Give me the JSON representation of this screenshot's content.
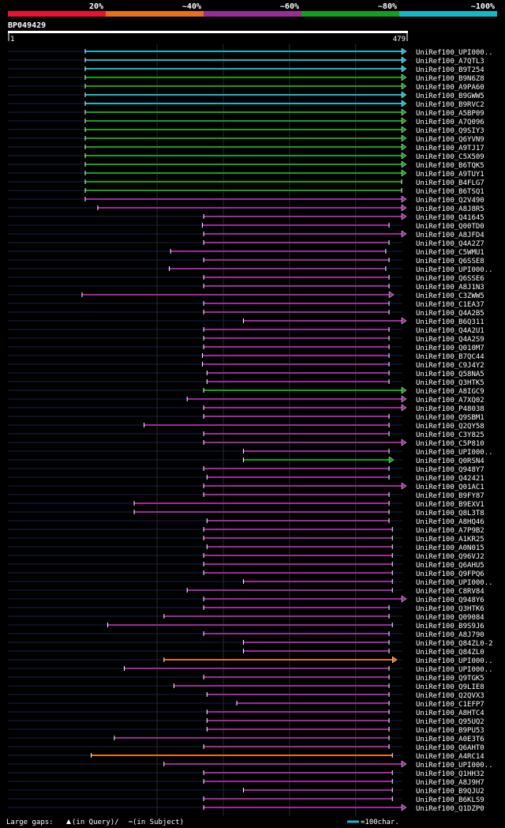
{
  "chart_data": {
    "type": "alignment-overview",
    "title": "BP049429",
    "query_length": 479,
    "axis_start_label": "1",
    "axis_end_label": "479",
    "identity_legend": [
      {
        "label": "20%",
        "color": "#e8142e"
      },
      {
        "label": "~40%",
        "color": "#e8701a"
      },
      {
        "label": "~60%",
        "color": "#9a2c98"
      },
      {
        "label": "~80%",
        "color": "#14a01c"
      },
      {
        "label": "~100%",
        "color": "#14b8c8"
      }
    ],
    "footer": {
      "gaps_label": "Large gaps:",
      "gaps_query": "(in Query)/",
      "gaps_subject": " (in Subject)",
      "scale_label": "=100char."
    },
    "hits": [
      {
        "name": "UniRef100_UPI000..",
        "s": 1,
        "e": 479,
        "c": 4,
        "a": 1
      },
      {
        "name": "UniRef100_A7QTL3",
        "s": 1,
        "e": 479,
        "c": 4,
        "a": 1
      },
      {
        "name": "UniRef100_B9T254",
        "s": 1,
        "e": 479,
        "c": 4,
        "a": 1
      },
      {
        "name": "UniRef100_B9N6Z8",
        "s": 1,
        "e": 479,
        "c": 3,
        "a": 1
      },
      {
        "name": "UniRef100_A9PA60",
        "s": 1,
        "e": 479,
        "c": 3,
        "a": 1
      },
      {
        "name": "UniRef100_B9GWW5",
        "s": 1,
        "e": 479,
        "c": 4,
        "a": 1
      },
      {
        "name": "UniRef100_B9RVC2",
        "s": 1,
        "e": 479,
        "c": 4,
        "a": 1
      },
      {
        "name": "UniRef100_A5BP09",
        "s": 1,
        "e": 479,
        "c": 3,
        "a": 1
      },
      {
        "name": "UniRef100_A7Q096",
        "s": 1,
        "e": 479,
        "c": 3,
        "a": 1
      },
      {
        "name": "UniRef100_Q9SIY3",
        "s": 1,
        "e": 479,
        "c": 3,
        "a": 1
      },
      {
        "name": "UniRef100_Q6YVN9",
        "s": 1,
        "e": 479,
        "c": 3,
        "a": 1
      },
      {
        "name": "UniRef100_A9TJ17",
        "s": 1,
        "e": 479,
        "c": 3,
        "a": 1
      },
      {
        "name": "UniRef100_C5X509",
        "s": 1,
        "e": 479,
        "c": 3,
        "a": 1
      },
      {
        "name": "UniRef100_B6TQK5",
        "s": 1,
        "e": 479,
        "c": 3,
        "a": 1
      },
      {
        "name": "UniRef100_A9TUY1",
        "s": 1,
        "e": 479,
        "c": 3,
        "a": 1
      },
      {
        "name": "UniRef100_B4FLG7",
        "s": 1,
        "e": 479,
        "c": 3,
        "a": 0
      },
      {
        "name": "UniRef100_B6TSQ1",
        "s": 1,
        "e": 479,
        "c": 3,
        "a": 0
      },
      {
        "name": "UniRef100_Q2V490",
        "s": 1,
        "e": 479,
        "c": 2,
        "a": 1
      },
      {
        "name": "UniRef100_A8J8R5",
        "s": 20,
        "e": 479,
        "c": 2,
        "a": 1
      },
      {
        "name": "UniRef100_Q41645",
        "s": 180,
        "e": 479,
        "c": 2,
        "a": 1
      },
      {
        "name": "UniRef100_Q00TD0",
        "s": 178,
        "e": 460,
        "c": 2,
        "a": 0
      },
      {
        "name": "UniRef100_A8JFD4",
        "s": 180,
        "e": 479,
        "c": 2,
        "a": 1
      },
      {
        "name": "UniRef100_Q4A2Z7",
        "s": 180,
        "e": 460,
        "c": 2,
        "a": 0
      },
      {
        "name": "UniRef100_C5WMU1",
        "s": 130,
        "e": 455,
        "c": 2,
        "a": 0
      },
      {
        "name": "UniRef100_Q6SSE8",
        "s": 180,
        "e": 460,
        "c": 2,
        "a": 0
      },
      {
        "name": "UniRef100_UPI000..",
        "s": 128,
        "e": 455,
        "c": 2,
        "a": 0
      },
      {
        "name": "UniRef100_Q6SSE6",
        "s": 180,
        "e": 460,
        "c": 2,
        "a": 0
      },
      {
        "name": "UniRef100_A8J1N3",
        "s": 180,
        "e": 460,
        "c": 2,
        "a": 0
      },
      {
        "name": "UniRef100_C3ZWW5",
        "s": 0,
        "e": 460,
        "c": 2,
        "a": 1
      },
      {
        "name": "UniRef100_C1EA37",
        "s": 180,
        "e": 460,
        "c": 2,
        "a": 0
      },
      {
        "name": "UniRef100_Q4A2B5",
        "s": 180,
        "e": 460,
        "c": 2,
        "a": 0
      },
      {
        "name": "UniRef100_B6Q311",
        "s": 240,
        "e": 479,
        "c": 2,
        "a": 1
      },
      {
        "name": "UniRef100_Q4A2U1",
        "s": 180,
        "e": 460,
        "c": 2,
        "a": 0
      },
      {
        "name": "UniRef100_Q4A2S9",
        "s": 180,
        "e": 460,
        "c": 2,
        "a": 0
      },
      {
        "name": "UniRef100_Q010M7",
        "s": 180,
        "e": 460,
        "c": 2,
        "a": 0
      },
      {
        "name": "UniRef100_B7QC44",
        "s": 178,
        "e": 460,
        "c": 2,
        "a": 0
      },
      {
        "name": "UniRef100_C9J4Y2",
        "s": 178,
        "e": 460,
        "c": 2,
        "a": 0
      },
      {
        "name": "UniRef100_Q58NA5",
        "s": 185,
        "e": 460,
        "c": 2,
        "a": 0
      },
      {
        "name": "UniRef100_Q3HTK5",
        "s": 185,
        "e": 460,
        "c": 2,
        "a": 0
      },
      {
        "name": "UniRef100_A8IGC9",
        "s": 180,
        "e": 479,
        "c": 3,
        "a": 1
      },
      {
        "name": "UniRef100_A7XQ02",
        "s": 155,
        "e": 479,
        "c": 2,
        "a": 1
      },
      {
        "name": "UniRef100_P48038",
        "s": 180,
        "e": 479,
        "c": 2,
        "a": 1
      },
      {
        "name": "UniRef100_Q9SBM1",
        "s": 180,
        "e": 460,
        "c": 2,
        "a": 0
      },
      {
        "name": "UniRef100_Q2QY58",
        "s": 90,
        "e": 460,
        "c": 2,
        "a": 0
      },
      {
        "name": "UniRef100_C3Y825",
        "s": 180,
        "e": 460,
        "c": 2,
        "a": 0
      },
      {
        "name": "UniRef100_C5P810",
        "s": 180,
        "e": 479,
        "c": 2,
        "a": 1
      },
      {
        "name": "UniRef100_UPI000..",
        "s": 240,
        "e": 460,
        "c": 2,
        "a": 0
      },
      {
        "name": "UniRef100_Q0RSN4",
        "s": 240,
        "e": 460,
        "c": 3,
        "a": 1
      },
      {
        "name": "UniRef100_Q948Y7",
        "s": 180,
        "e": 460,
        "c": 2,
        "a": 0
      },
      {
        "name": "UniRef100_Q42421",
        "s": 185,
        "e": 460,
        "c": 2,
        "a": 0
      },
      {
        "name": "UniRef100_Q01AC1",
        "s": 180,
        "e": 479,
        "c": 2,
        "a": 1
      },
      {
        "name": "UniRef100_B9FY87",
        "s": 180,
        "e": 460,
        "c": 2,
        "a": 0
      },
      {
        "name": "UniRef100_B9EXV1",
        "s": 75,
        "e": 460,
        "c": 2,
        "a": 0
      },
      {
        "name": "UniRef100_Q8L3T8",
        "s": 75,
        "e": 460,
        "c": 2,
        "a": 0
      },
      {
        "name": "UniRef100_A8HQ46",
        "s": 185,
        "e": 460,
        "c": 2,
        "a": 0
      },
      {
        "name": "UniRef100_A7P9B2",
        "s": 180,
        "e": 465,
        "c": 2,
        "a": 0
      },
      {
        "name": "UniRef100_A1KR25",
        "s": 180,
        "e": 465,
        "c": 2,
        "a": 0
      },
      {
        "name": "UniRef100_A0N015",
        "s": 185,
        "e": 465,
        "c": 2,
        "a": 0
      },
      {
        "name": "UniRef100_Q96VJ2",
        "s": 180,
        "e": 465,
        "c": 2,
        "a": 0
      },
      {
        "name": "UniRef100_Q6AHU5",
        "s": 180,
        "e": 465,
        "c": 2,
        "a": 0
      },
      {
        "name": "UniRef100_Q9FPQ6",
        "s": 180,
        "e": 465,
        "c": 2,
        "a": 0
      },
      {
        "name": "UniRef100_UPI000..",
        "s": 240,
        "e": 465,
        "c": 2,
        "a": 0
      },
      {
        "name": "UniRef100_C8RV84",
        "s": 155,
        "e": 465,
        "c": 2,
        "a": 0
      },
      {
        "name": "UniRef100_Q948Y6",
        "s": 180,
        "e": 479,
        "c": 2,
        "a": 1
      },
      {
        "name": "UniRef100_Q3HTK6",
        "s": 180,
        "e": 460,
        "c": 2,
        "a": 0
      },
      {
        "name": "UniRef100_Q09084",
        "s": 120,
        "e": 460,
        "c": 2,
        "a": 0
      },
      {
        "name": "UniRef100_B9S9J6",
        "s": 35,
        "e": 465,
        "c": 2,
        "a": 0
      },
      {
        "name": "UniRef100_A8J790",
        "s": 180,
        "e": 460,
        "c": 2,
        "a": 0
      },
      {
        "name": "UniRef100_Q84ZL0-2",
        "s": 240,
        "e": 460,
        "c": 2,
        "a": 0
      },
      {
        "name": "UniRef100_Q84ZL0",
        "s": 240,
        "e": 460,
        "c": 2,
        "a": 0
      },
      {
        "name": "UniRef100_UPI000..",
        "s": 120,
        "e": 465,
        "c": 1,
        "a": 1
      },
      {
        "name": "UniRef100_UPI000..",
        "s": 60,
        "e": 460,
        "c": 2,
        "a": 0
      },
      {
        "name": "UniRef100_Q9TGK5",
        "s": 180,
        "e": 460,
        "c": 2,
        "a": 0
      },
      {
        "name": "UniRef100_Q9LIE8",
        "s": 135,
        "e": 460,
        "c": 2,
        "a": 0
      },
      {
        "name": "UniRef100_Q2QVX3",
        "s": 185,
        "e": 460,
        "c": 2,
        "a": 0
      },
      {
        "name": "UniRef100_C1EFP7",
        "s": 230,
        "e": 460,
        "c": 2,
        "a": 0
      },
      {
        "name": "UniRef100_A8HTC4",
        "s": 185,
        "e": 460,
        "c": 2,
        "a": 0
      },
      {
        "name": "UniRef100_Q95UQ2",
        "s": 185,
        "e": 460,
        "c": 2,
        "a": 0
      },
      {
        "name": "UniRef100_B9PU53",
        "s": 185,
        "e": 460,
        "c": 2,
        "a": 0
      },
      {
        "name": "UniRef100_A0E3T6",
        "s": 45,
        "e": 460,
        "c": 2,
        "a": 0
      },
      {
        "name": "UniRef100_Q6AHT0",
        "s": 180,
        "e": 460,
        "c": 2,
        "a": 0
      },
      {
        "name": "UniRef100_A4RC14",
        "s": 10,
        "e": 465,
        "c": 1,
        "a": 0
      },
      {
        "name": "UniRef100_UPI000..",
        "s": 120,
        "e": 479,
        "c": 2,
        "a": 1
      },
      {
        "name": "UniRef100_Q1HH32",
        "s": 180,
        "e": 465,
        "c": 2,
        "a": 0
      },
      {
        "name": "UniRef100_A8J9H7",
        "s": 180,
        "e": 465,
        "c": 2,
        "a": 0
      },
      {
        "name": "UniRef100_B9QJU2",
        "s": 240,
        "e": 465,
        "c": 2,
        "a": 0
      },
      {
        "name": "UniRef100_B6KLS9",
        "s": 180,
        "e": 465,
        "c": 2,
        "a": 0
      },
      {
        "name": "UniRef100_Q1DZP0",
        "s": 180,
        "e": 479,
        "c": 2,
        "a": 1
      }
    ]
  }
}
